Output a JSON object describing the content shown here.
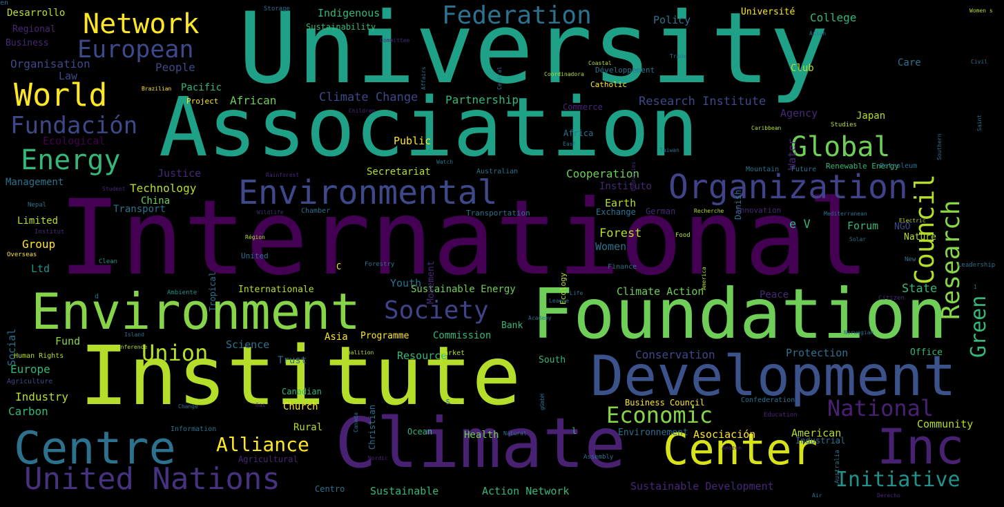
{
  "words": [
    {
      "text": "International",
      "color": "#440154"
    },
    {
      "text": "University",
      "color": "#1fa187"
    },
    {
      "text": "Association",
      "color": "#1fa187"
    },
    {
      "text": "Institute",
      "color": "#b5de2b"
    },
    {
      "text": "Foundation",
      "color": "#6ece58"
    },
    {
      "text": "Climate",
      "color": "#482173"
    },
    {
      "text": "Development",
      "color": "#3b528b"
    },
    {
      "text": "Environment",
      "color": "#86d549"
    },
    {
      "text": "Centre",
      "color": "#2c728e"
    },
    {
      "text": "Center",
      "color": "#d8e219"
    },
    {
      "text": "Inc",
      "color": "#482173"
    },
    {
      "text": "Environmental",
      "color": "#3e4989"
    },
    {
      "text": "Organization",
      "color": "#404387"
    },
    {
      "text": "United Nations",
      "color": "#46327e"
    },
    {
      "text": "Network",
      "color": "#fde725"
    },
    {
      "text": "World",
      "color": "#fde725"
    },
    {
      "text": "Federation",
      "color": "#2c728e"
    },
    {
      "text": "European",
      "color": "#3e4989"
    },
    {
      "text": "Energy",
      "color": "#35b779"
    },
    {
      "text": "Fundación",
      "color": "#3e4989"
    },
    {
      "text": "Global",
      "color": "#6ece58"
    },
    {
      "text": "Council",
      "color": "#b5de2b"
    },
    {
      "text": "Research",
      "color": "#86d549"
    },
    {
      "text": "Society",
      "color": "#404387"
    },
    {
      "text": "Union",
      "color": "#b5de2b"
    },
    {
      "text": "Economic",
      "color": "#86d549"
    },
    {
      "text": "National",
      "color": "#482173"
    },
    {
      "text": "Initiative",
      "color": "#21918c"
    },
    {
      "text": "Alliance",
      "color": "#fde725"
    },
    {
      "text": "Green",
      "color": "#35b779"
    },
    {
      "text": "Desarrollo",
      "color": "#bddf26"
    },
    {
      "text": "Regional",
      "color": "#482878"
    },
    {
      "text": "Business",
      "color": "#482878"
    },
    {
      "text": "Organisation",
      "color": "#3e4989"
    },
    {
      "text": "Law",
      "color": "#3e4989"
    },
    {
      "text": "People",
      "color": "#3e4989"
    },
    {
      "text": "Pacific",
      "color": "#35b779"
    },
    {
      "text": "Brazilian",
      "color": "#fde725"
    },
    {
      "text": "Project",
      "color": "#fde725"
    },
    {
      "text": "African",
      "color": "#6ece58"
    },
    {
      "text": "Climate Change",
      "color": "#3e4989"
    },
    {
      "text": "Partnership",
      "color": "#35b779"
    },
    {
      "text": "Research Institute",
      "color": "#3e4989"
    },
    {
      "text": "Ecological",
      "color": "#440154"
    },
    {
      "text": "Public",
      "color": "#fde725"
    },
    {
      "text": "Justice",
      "color": "#482878"
    },
    {
      "text": "Management",
      "color": "#2c728e"
    },
    {
      "text": "Technology",
      "color": "#b5de2b"
    },
    {
      "text": "China",
      "color": "#6ece58"
    },
    {
      "text": "Transport",
      "color": "#2c728e"
    },
    {
      "text": "Secretariat",
      "color": "#b5de2b"
    },
    {
      "text": "Cooperation",
      "color": "#6ece58"
    },
    {
      "text": "Instituto",
      "color": "#482878"
    },
    {
      "text": "Limited",
      "color": "#b5de2b"
    },
    {
      "text": "Group",
      "color": "#fde725"
    },
    {
      "text": "Ltd",
      "color": "#21918c"
    },
    {
      "text": "Social",
      "color": "#2c728e"
    },
    {
      "text": "Nepal",
      "color": "#2c728e"
    },
    {
      "text": "Institut",
      "color": "#482878"
    },
    {
      "text": "Overseas",
      "color": "#fde725"
    },
    {
      "text": "Clean",
      "color": "#21918c"
    },
    {
      "text": "Ambiente",
      "color": "#21918c"
    },
    {
      "text": "Internationale",
      "color": "#b5de2b"
    },
    {
      "text": "Youth",
      "color": "#2c728e"
    },
    {
      "text": "Sustainable Energy",
      "color": "#6ece58"
    },
    {
      "text": "Climate Action",
      "color": "#6ece58"
    },
    {
      "text": "Peace",
      "color": "#482878"
    },
    {
      "text": "State",
      "color": "#35b779"
    },
    {
      "text": "Earth",
      "color": "#b5de2b"
    },
    {
      "text": "Exchange",
      "color": "#2c728e"
    },
    {
      "text": "German",
      "color": "#482878"
    },
    {
      "text": "Forest",
      "color": "#b5de2b"
    },
    {
      "text": "Women",
      "color": "#2c728e"
    },
    {
      "text": "Forum",
      "color": "#35b779"
    },
    {
      "text": "NGO",
      "color": "#3e4989"
    },
    {
      "text": "Nature",
      "color": "#b5de2b"
    },
    {
      "text": "e V",
      "color": "#35b779"
    },
    {
      "text": "Fund",
      "color": "#86d549"
    },
    {
      "text": "Science",
      "color": "#2c728e"
    },
    {
      "text": "Asia",
      "color": "#fde725"
    },
    {
      "text": "Programme",
      "color": "#fde725"
    },
    {
      "text": "Commission",
      "color": "#35b779"
    },
    {
      "text": "Bank",
      "color": "#35b779"
    },
    {
      "text": "Trust",
      "color": "#2c728e"
    },
    {
      "text": "Resource",
      "color": "#35b779"
    },
    {
      "text": "Conservation",
      "color": "#3e4989"
    },
    {
      "text": "Protection",
      "color": "#2c728e"
    },
    {
      "text": "Office",
      "color": "#35b779"
    },
    {
      "text": "South",
      "color": "#35b779"
    },
    {
      "text": "Europe",
      "color": "#35b779"
    },
    {
      "text": "Industry",
      "color": "#b5de2b"
    },
    {
      "text": "Carbon",
      "color": "#35b779"
    },
    {
      "text": "Human Rights",
      "color": "#b5de2b"
    },
    {
      "text": "Agriculture",
      "color": "#3e4989"
    },
    {
      "text": "Canadian",
      "color": "#35b779"
    },
    {
      "text": "Church",
      "color": "#fde725"
    },
    {
      "text": "Rural",
      "color": "#b5de2b"
    },
    {
      "text": "Business Council",
      "color": "#fde725"
    },
    {
      "text": "Confederation",
      "color": "#2c728e"
    },
    {
      "text": "Education",
      "color": "#482878"
    },
    {
      "text": "Community",
      "color": "#b5de2b"
    },
    {
      "text": "Ocean",
      "color": "#35b779"
    },
    {
      "text": "Health",
      "color": "#6ece58"
    },
    {
      "text": "Environnement",
      "color": "#2c728e"
    },
    {
      "text": "l",
      "color": "#35b779"
    },
    {
      "text": "Asociación",
      "color": "#fde725"
    },
    {
      "text": "American",
      "color": "#b5de2b"
    },
    {
      "text": "Industrial",
      "color": "#2c728e"
    },
    {
      "text": "Information",
      "color": "#2c728e"
    },
    {
      "text": "Agricultural",
      "color": "#482878"
    },
    {
      "text": "Centro",
      "color": "#2c728e"
    },
    {
      "text": "Sustainable",
      "color": "#35b779"
    },
    {
      "text": "Action Network",
      "color": "#35b779"
    },
    {
      "text": "Sustainable Development",
      "color": "#482878"
    },
    {
      "text": "Indigenous",
      "color": "#35b779"
    },
    {
      "text": "Sustainability",
      "color": "#35b779"
    },
    {
      "text": "Storage",
      "color": "#2c728e"
    },
    {
      "text": "Policy",
      "color": "#2c728e"
    },
    {
      "text": "Université",
      "color": "#fde725"
    },
    {
      "text": "College",
      "color": "#35b779"
    },
    {
      "text": "Club",
      "color": "#b5de2b"
    },
    {
      "text": "Water",
      "color": "#482878"
    },
    {
      "text": "Développement",
      "color": "#2c728e"
    },
    {
      "text": "Catholic",
      "color": "#fde725"
    },
    {
      "text": "Commerce",
      "color": "#482878"
    },
    {
      "text": "Africa",
      "color": "#2c728e"
    },
    {
      "text": "Agency",
      "color": "#482878"
    },
    {
      "text": "Japan",
      "color": "#b5de2b"
    },
    {
      "text": "Studies",
      "color": "#b5de2b"
    },
    {
      "text": "Renewable Energy",
      "color": "#35b779"
    },
    {
      "text": "Danish",
      "color": "#2c728e"
    },
    {
      "text": "Mountain",
      "color": "#2c728e"
    },
    {
      "text": "Future",
      "color": "#2c728e"
    },
    {
      "text": "Petroleum",
      "color": "#2c728e"
    },
    {
      "text": "Australian",
      "color": "#2c728e"
    },
    {
      "text": "Watch",
      "color": "#2c728e"
    },
    {
      "text": "Chamber",
      "color": "#2c728e"
    },
    {
      "text": "Transportation",
      "color": "#2c728e"
    },
    {
      "text": "Innovation",
      "color": "#482878"
    },
    {
      "text": "Recherche",
      "color": "#b5de2b"
    },
    {
      "text": "Mediterranean",
      "color": "#2c728e"
    },
    {
      "text": "Electric",
      "color": "#b5de2b"
    },
    {
      "text": "Tropical",
      "color": "#2c728e"
    },
    {
      "text": "Movement",
      "color": "#482878"
    },
    {
      "text": "United",
      "color": "#2c728e"
    },
    {
      "text": "Région",
      "color": "#b5de2b"
    },
    {
      "text": "Food",
      "color": "#b5de2b"
    },
    {
      "text": "Ecology",
      "color": "#b5de2b"
    },
    {
      "text": "America",
      "color": "#b5de2b"
    },
    {
      "text": "Solar",
      "color": "#2c728e"
    },
    {
      "text": "New",
      "color": "#2c728e"
    },
    {
      "text": "Leadership",
      "color": "#2c728e"
    },
    {
      "text": "Citizen",
      "color": "#482878"
    },
    {
      "text": "Finance",
      "color": "#2c728e"
    },
    {
      "text": "Forestry",
      "color": "#2c728e"
    },
    {
      "text": "Island",
      "color": "#2c728e"
    },
    {
      "text": "Conference",
      "color": "#b5de2b"
    },
    {
      "text": "Market",
      "color": "#b5de2b"
    },
    {
      "text": "Coalition",
      "color": "#b5de2b"
    },
    {
      "text": "Canada",
      "color": "#2c728e"
    },
    {
      "text": "Christian",
      "color": "#2c728e"
    },
    {
      "text": "Gas",
      "color": "#482878"
    },
    {
      "text": "Change",
      "color": "#2c728e"
    },
    {
      "text": "Nordic",
      "color": "#482878"
    },
    {
      "text": "Natural",
      "color": "#2c728e"
    },
    {
      "text": "Assembly",
      "color": "#2c728e"
    },
    {
      "text": "Air",
      "color": "#2c728e"
    },
    {
      "text": "Derecho",
      "color": "#482878"
    },
    {
      "text": "Australia",
      "color": "#2c728e"
    },
    {
      "text": "Norwegian",
      "color": "#2c728e"
    },
    {
      "text": "Central",
      "color": "#2c728e"
    },
    {
      "text": "Affairs",
      "color": "#2c728e"
    },
    {
      "text": "Trade",
      "color": "#2c728e"
    },
    {
      "text": "Coastal",
      "color": "#b5de2b"
    },
    {
      "text": "Coordinadora",
      "color": "#b5de2b"
    },
    {
      "text": "Children",
      "color": "#482878"
    },
    {
      "text": "Caribbean",
      "color": "#b5de2b"
    },
    {
      "text": "Taiwan",
      "color": "#2c728e"
    },
    {
      "text": "East",
      "color": "#2c728e"
    },
    {
      "text": "Rainforest",
      "color": "#482878"
    },
    {
      "text": "Wildlife",
      "color": "#482878"
    },
    {
      "text": "Student",
      "color": "#482878"
    },
    {
      "text": "League",
      "color": "#2c728e"
    },
    {
      "text": "Academy",
      "color": "#2c728e"
    },
    {
      "text": "Life",
      "color": "#2c728e"
    },
    {
      "text": "Women s",
      "color": "#b5de2b"
    },
    {
      "text": "Civil",
      "color": "#2c728e"
    },
    {
      "text": "Saint",
      "color": "#2c728e"
    },
    {
      "text": "Southern",
      "color": "#2c728e"
    },
    {
      "text": "Asian",
      "color": "#2c728e"
    },
    {
      "text": "Committee",
      "color": "#482878"
    },
    {
      "text": "gGmbH",
      "color": "#2c728e"
    },
    {
      "text": "Amazon",
      "color": "#482878"
    },
    {
      "text": "Countries",
      "color": "#482878"
    },
    {
      "text": "Care",
      "color": "#2c728e"
    },
    {
      "text": "s",
      "color": "#2c728e"
    },
    {
      "text": "d",
      "color": "#2c728e"
    },
    {
      "text": "C",
      "color": "#fde725"
    },
    {
      "text": "1",
      "color": "#2c728e"
    },
    {
      "text": "en",
      "color": "#2c728e"
    }
  ]
}
